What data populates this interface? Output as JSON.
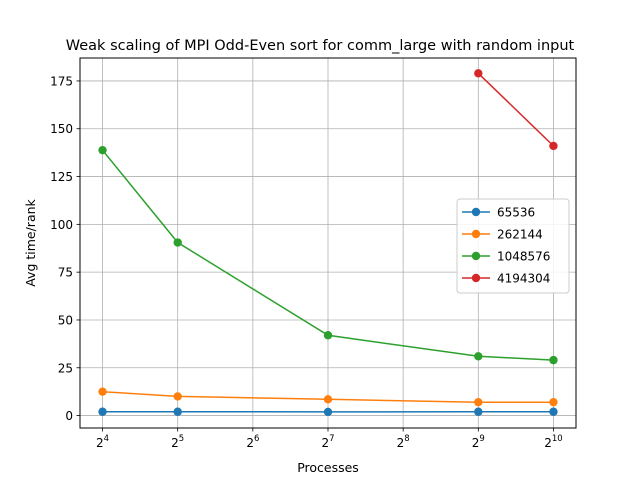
{
  "chart_data": {
    "type": "line",
    "title": "Weak scaling of MPI Odd-Even sort for comm_large with random input",
    "xlabel": "Processes",
    "ylabel": "Avg time/rank",
    "x_scale": "log2",
    "x": [
      16,
      32,
      128,
      512,
      1024
    ],
    "x_ticks": [
      {
        "value": 16,
        "base": "2",
        "exp": "4"
      },
      {
        "value": 32,
        "base": "2",
        "exp": "5"
      },
      {
        "value": 64,
        "base": "2",
        "exp": "6"
      },
      {
        "value": 128,
        "base": "2",
        "exp": "7"
      },
      {
        "value": 256,
        "base": "2",
        "exp": "8"
      },
      {
        "value": 512,
        "base": "2",
        "exp": "9"
      },
      {
        "value": 1024,
        "base": "2",
        "exp": "10"
      }
    ],
    "y_ticks": [
      "0",
      "25",
      "50",
      "75",
      "100",
      "125",
      "150",
      "175"
    ],
    "ylim": [
      -6.5,
      187
    ],
    "grid": true,
    "legend_position": "center-right",
    "series": [
      {
        "name": "65536",
        "color": "#1f77b4",
        "x": [
          16,
          32,
          128,
          512,
          1024
        ],
        "values": [
          2.0,
          2.0,
          1.9,
          2.0,
          2.0
        ]
      },
      {
        "name": "262144",
        "color": "#ff7f0e",
        "x": [
          16,
          32,
          128,
          512,
          1024
        ],
        "values": [
          12.5,
          10.0,
          8.5,
          7.0,
          7.0
        ]
      },
      {
        "name": "1048576",
        "color": "#2ca02c",
        "x": [
          16,
          32,
          128,
          512,
          1024
        ],
        "values": [
          138.8,
          90.5,
          42.0,
          31.0,
          29.0
        ]
      },
      {
        "name": "4194304",
        "color": "#d62728",
        "x": [
          512,
          1024
        ],
        "values": [
          179.0,
          141.0
        ]
      }
    ]
  }
}
